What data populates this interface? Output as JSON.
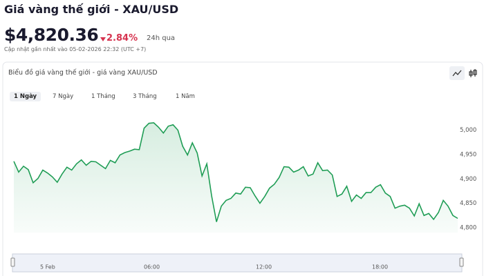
{
  "header": {
    "title": "Giá vàng thế giới - XAU/USD",
    "price": "$4,820.36",
    "change": "2.84%",
    "change_period": "24h qua",
    "updated": "Cập nhật gần nhất vào 05-02-2026 22:32 (UTC +7)"
  },
  "card_title": "Biểu đồ giá vàng thế giới - giá vàng XAU/USD",
  "tabs": [
    "1 Ngày",
    "7 Ngày",
    "1 Tháng",
    "3 Tháng",
    "1 Năm"
  ],
  "navigator_labels": [
    "5 Feb",
    "06:00",
    "12:00",
    "18:00"
  ],
  "chart_data": {
    "type": "line",
    "color": "#1f9d55",
    "values": [
      4936,
      4914,
      4926,
      4919,
      4892,
      4901,
      4918,
      4912,
      4904,
      4893,
      4910,
      4924,
      4918,
      4931,
      4939,
      4928,
      4936,
      4935,
      4928,
      4921,
      4938,
      4933,
      4949,
      4954,
      4957,
      4961,
      4960,
      5004,
      5014,
      5015,
      5006,
      4994,
      5008,
      5011,
      5000,
      4967,
      4949,
      4974,
      4953,
      4906,
      4931,
      4865,
      4812,
      4844,
      4856,
      4860,
      4871,
      4869,
      4883,
      4882,
      4865,
      4850,
      4864,
      4881,
      4889,
      4903,
      4925,
      4924,
      4914,
      4918,
      4925,
      4906,
      4910,
      4933,
      4917,
      4918,
      4908,
      4864,
      4869,
      4885,
      4854,
      4867,
      4860,
      4872,
      4872,
      4883,
      4888,
      4871,
      4864,
      4840,
      4844,
      4846,
      4840,
      4824,
      4849,
      4825,
      4829,
      4817,
      4831,
      4856,
      4844,
      4825,
      4819
    ],
    "ylim": [
      4790,
      5090
    ],
    "yticks": [
      {
        "value": 4800,
        "label": "4,800"
      },
      {
        "value": 4850,
        "label": "4,850"
      },
      {
        "value": 4900,
        "label": "4,900"
      },
      {
        "value": 4950,
        "label": "4,950"
      },
      {
        "value": 5000,
        "label": "5,000"
      }
    ]
  }
}
